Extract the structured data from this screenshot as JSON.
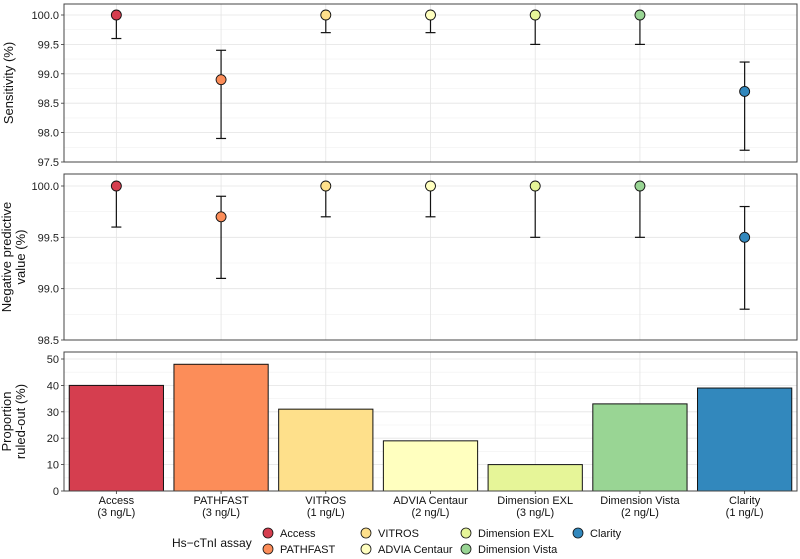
{
  "chart_data": {
    "type": "multi-panel",
    "assays": [
      "Access",
      "PATHFAST",
      "VITROS",
      "ADVIA Centaur",
      "Dimension EXL",
      "Dimension Vista",
      "Clarity"
    ],
    "thresholds": [
      "(3 ng/L)",
      "(3 ng/L)",
      "(1 ng/L)",
      "(2 ng/L)",
      "(3 ng/L)",
      "(2 ng/L)",
      "(1 ng/L)"
    ],
    "colors": [
      "#d53e4f",
      "#fc8d59",
      "#fee08b",
      "#ffffbf",
      "#e6f598",
      "#99d594",
      "#3288bd"
    ],
    "panels": [
      {
        "type": "point-errorbar",
        "ylabel_lines": [
          "Sensitivity (%)"
        ],
        "ylim": [
          97.5,
          100.0
        ],
        "yticks": [
          97.5,
          98.0,
          98.5,
          99.0,
          99.5,
          100.0
        ],
        "ytick_labels": [
          "97.5",
          "98.0",
          "98.5",
          "99.0",
          "99.5",
          "100.0"
        ],
        "values": [
          100.0,
          98.9,
          100.0,
          100.0,
          100.0,
          100.0,
          98.7
        ],
        "lower": [
          99.6,
          97.9,
          99.7,
          99.7,
          99.5,
          99.5,
          97.7
        ],
        "upper": [
          100.0,
          99.4,
          100.0,
          100.0,
          100.0,
          100.0,
          99.2
        ]
      },
      {
        "type": "point-errorbar",
        "ylabel_lines": [
          "Negative predictive",
          "value (%)"
        ],
        "ylim": [
          98.5,
          100.0
        ],
        "yticks": [
          98.5,
          99.0,
          99.5,
          100.0
        ],
        "ytick_labels": [
          "98.5",
          "99.0",
          "99.5",
          "100.0"
        ],
        "values": [
          100.0,
          99.7,
          100.0,
          100.0,
          100.0,
          100.0,
          99.5
        ],
        "lower": [
          99.6,
          99.1,
          99.7,
          99.7,
          99.5,
          99.5,
          98.8
        ],
        "upper": [
          100.0,
          99.9,
          100.0,
          100.0,
          100.0,
          100.0,
          99.8
        ]
      },
      {
        "type": "bar",
        "ylabel_lines": [
          "Proportion",
          "ruled-out (%)"
        ],
        "ylim": [
          0,
          50
        ],
        "yticks": [
          0,
          10,
          20,
          30,
          40,
          50
        ],
        "ytick_labels": [
          "0",
          "10",
          "20",
          "30",
          "40",
          "50"
        ],
        "values": [
          40,
          48,
          31,
          19,
          10,
          33,
          39
        ]
      }
    ],
    "legend": {
      "title": "Hs−cTnI assay",
      "position": "bottom",
      "entries": [
        "Access",
        "PATHFAST",
        "VITROS",
        "ADVIA Centaur",
        "Dimension EXL",
        "Dimension Vista",
        "Clarity"
      ]
    },
    "grid": true
  }
}
